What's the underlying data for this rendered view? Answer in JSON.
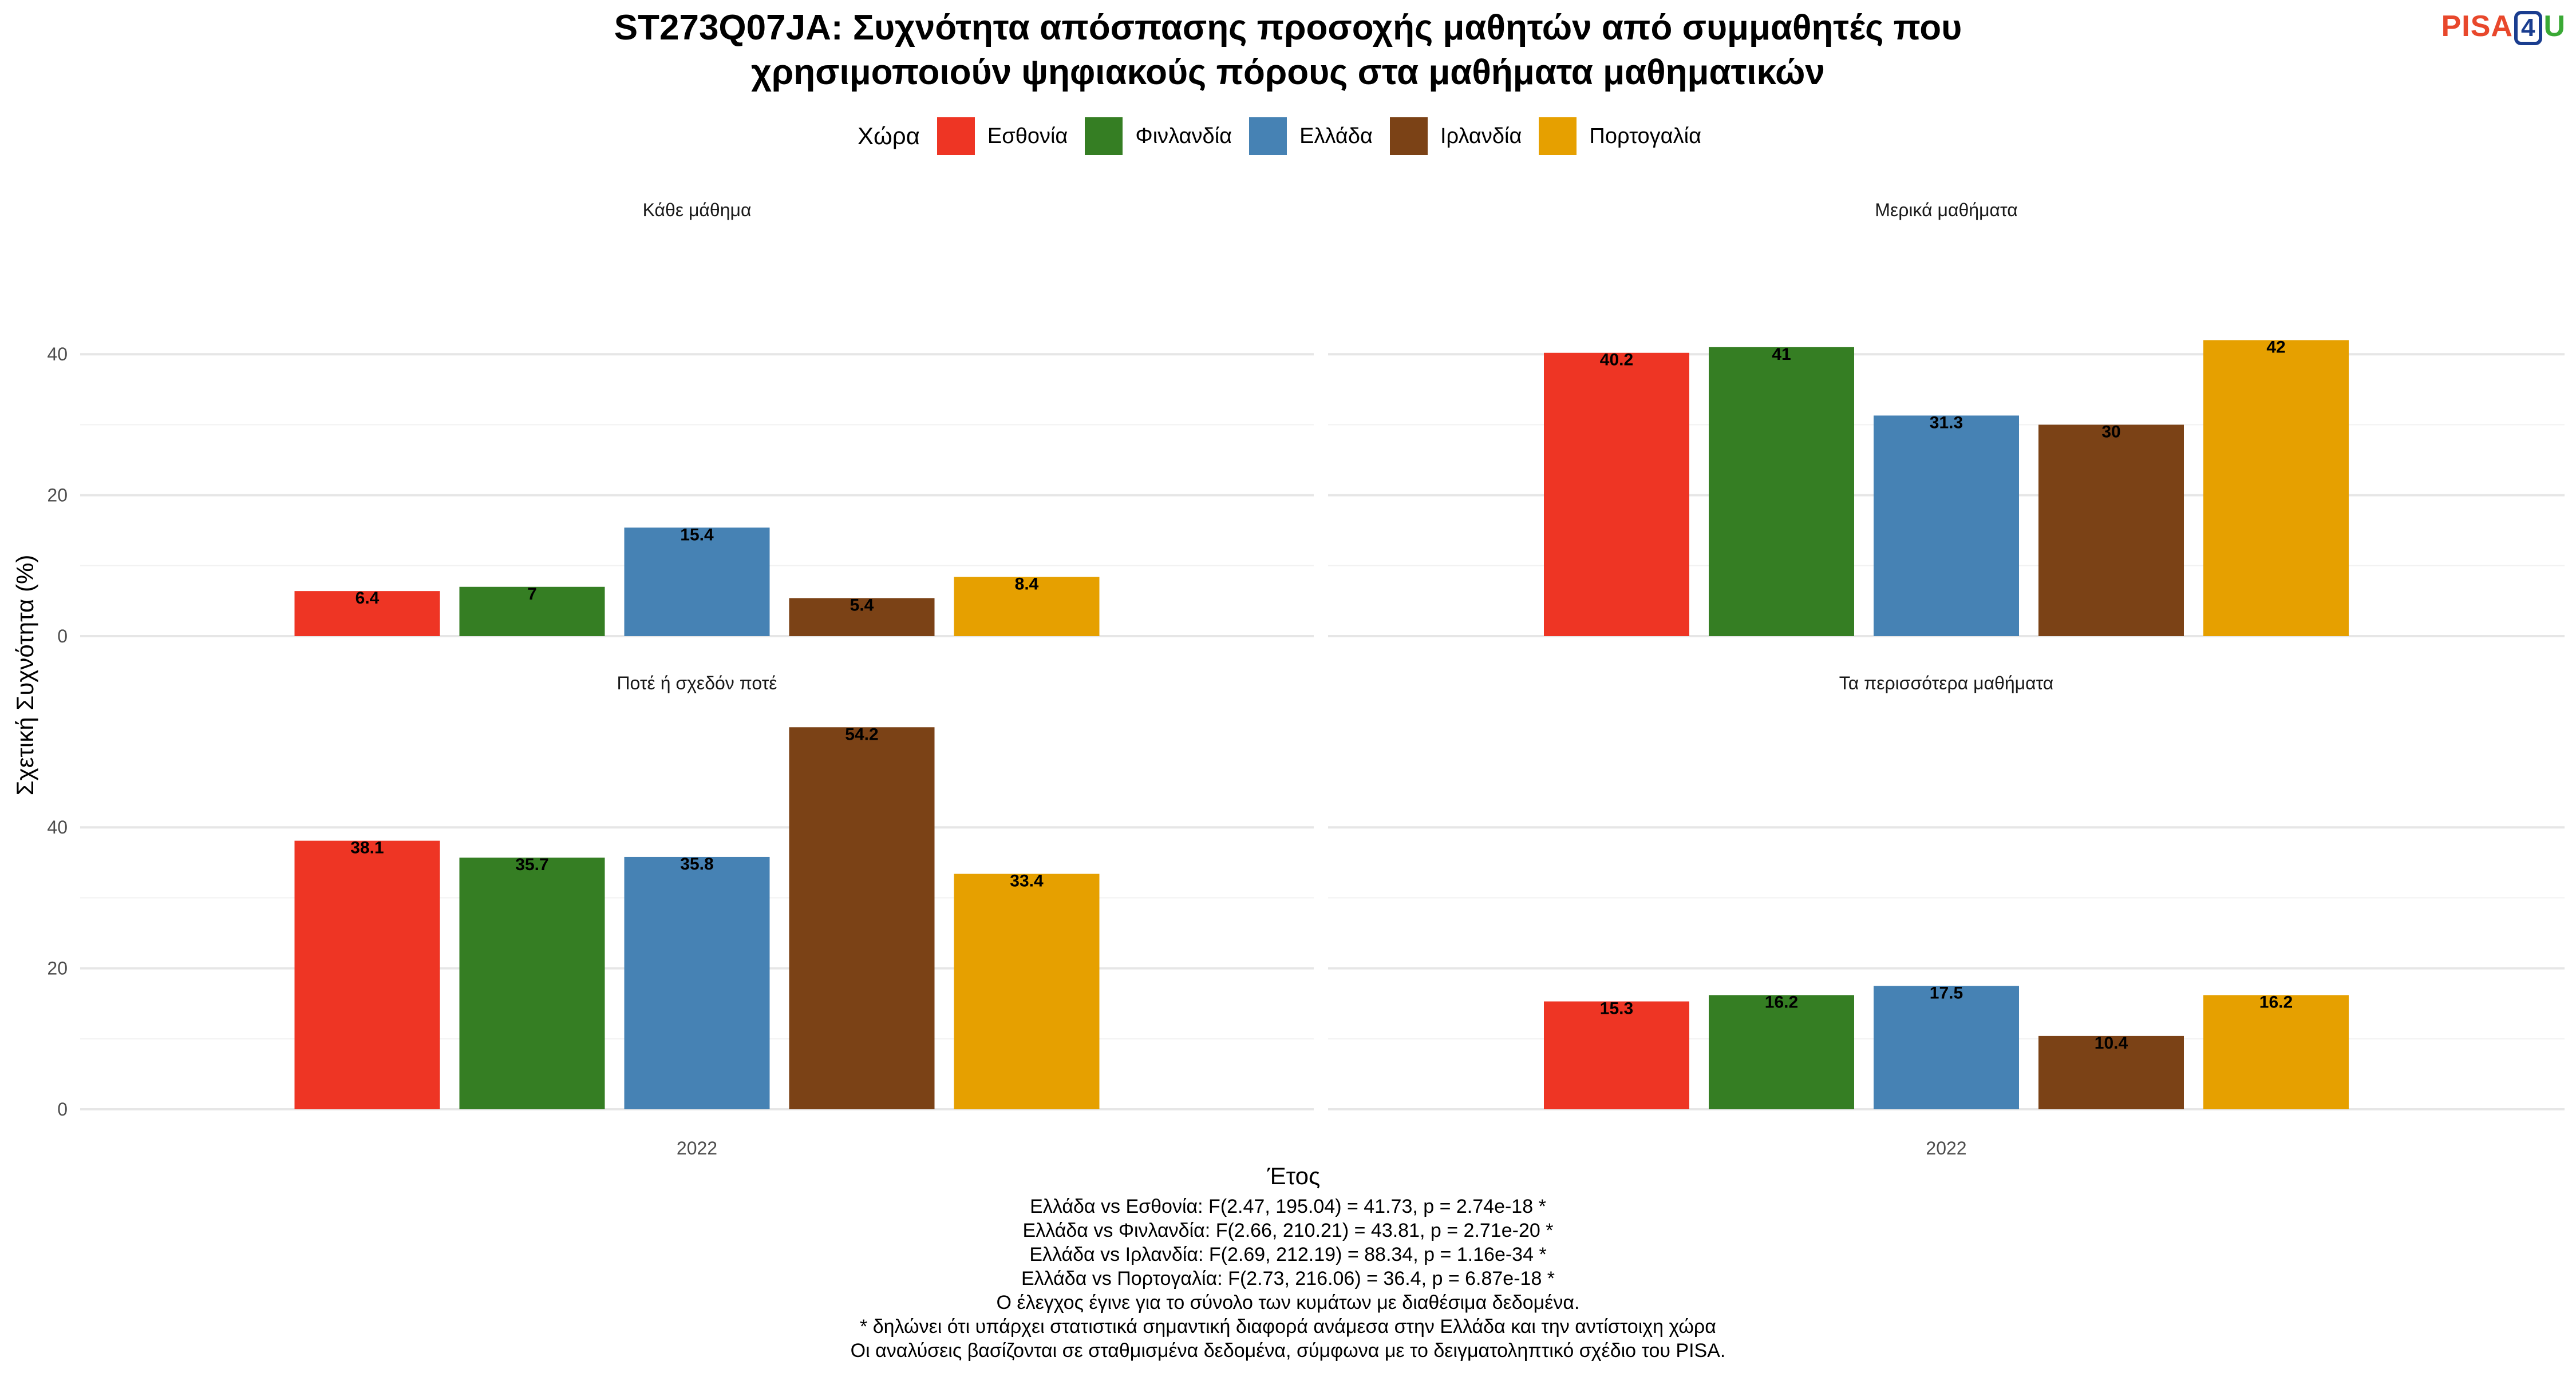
{
  "title_line1": "ST273Q07JA: Συχνότητα απόσπασης προσοχής μαθητών από συμμαθητές που",
  "title_line2": "χρησιμοποιούν ψηφιακούς πόρους στα μαθήματα μαθηματικών",
  "logo": {
    "part1": "PISA",
    "part2": "4",
    "part3": "U"
  },
  "legend_title": "Χώρα",
  "colors": {
    "Εσθονία": "#ee3524",
    "Φινλανδία": "#357e23",
    "Ελλάδα": "#4682b4",
    "Ιρλανδία": "#7b4216",
    "Πορτογαλία": "#e6a000"
  },
  "chart_data": {
    "type": "bar",
    "xlabel": "Έτος",
    "ylabel": "Σχετική Συχνότητα (%)",
    "ylim": [
      0,
      50
    ],
    "yticks": [
      "0",
      "20",
      "40"
    ],
    "categories": [
      "2022"
    ],
    "series_names": [
      "Εσθονία",
      "Φινλανδία",
      "Ελλάδα",
      "Ιρλανδία",
      "Πορτογαλία"
    ],
    "panels": [
      {
        "name": "Κάθε μάθημα",
        "values": [
          6.4,
          7,
          15.4,
          5.4,
          8.4
        ],
        "labels": [
          "6.4",
          "7",
          "15.4",
          "5.4",
          "8.4"
        ]
      },
      {
        "name": "Μερικά μαθήματα",
        "values": [
          40.2,
          41,
          31.3,
          30,
          42
        ],
        "labels": [
          "40.2",
          "41",
          "31.3",
          "30",
          "42"
        ]
      },
      {
        "name": "Ποτέ ή σχεδόν ποτέ",
        "values": [
          38.1,
          35.7,
          35.8,
          54.2,
          33.4
        ],
        "labels": [
          "38.1",
          "35.7",
          "35.8",
          "54.2",
          "33.4"
        ]
      },
      {
        "name": "Τα περισσότερα μαθήματα",
        "values": [
          15.3,
          16.2,
          17.5,
          10.4,
          16.2
        ],
        "labels": [
          "15.3",
          "16.2",
          "17.5",
          "10.4",
          "16.2"
        ]
      }
    ],
    "grid": true,
    "legend_position": "top"
  },
  "notes": [
    "Ελλάδα vs Εσθονία: F(2.47, 195.04) = 41.73, p = 2.74e-18 *",
    "Ελλάδα vs Φινλανδία: F(2.66, 210.21) = 43.81, p = 2.71e-20 *",
    "Ελλάδα vs Ιρλανδία: F(2.69, 212.19) = 88.34, p = 1.16e-34 *",
    "Ελλάδα vs Πορτογαλία: F(2.73, 216.06) = 36.4, p = 6.87e-18 *",
    "Ο έλεγχος έγινε για το σύνολο των κυμάτων με διαθέσιμα δεδομένα.",
    "* δηλώνει ότι υπάρχει στατιστικά σημαντική διαφορά ανάμεσα στην Ελλάδα και την αντίστοιχη χώρα",
    "Οι αναλύσεις βασίζονται σε σταθμισμένα δεδομένα, σύμφωνα με το δειγματοληπτικό σχέδιο του PISA."
  ]
}
